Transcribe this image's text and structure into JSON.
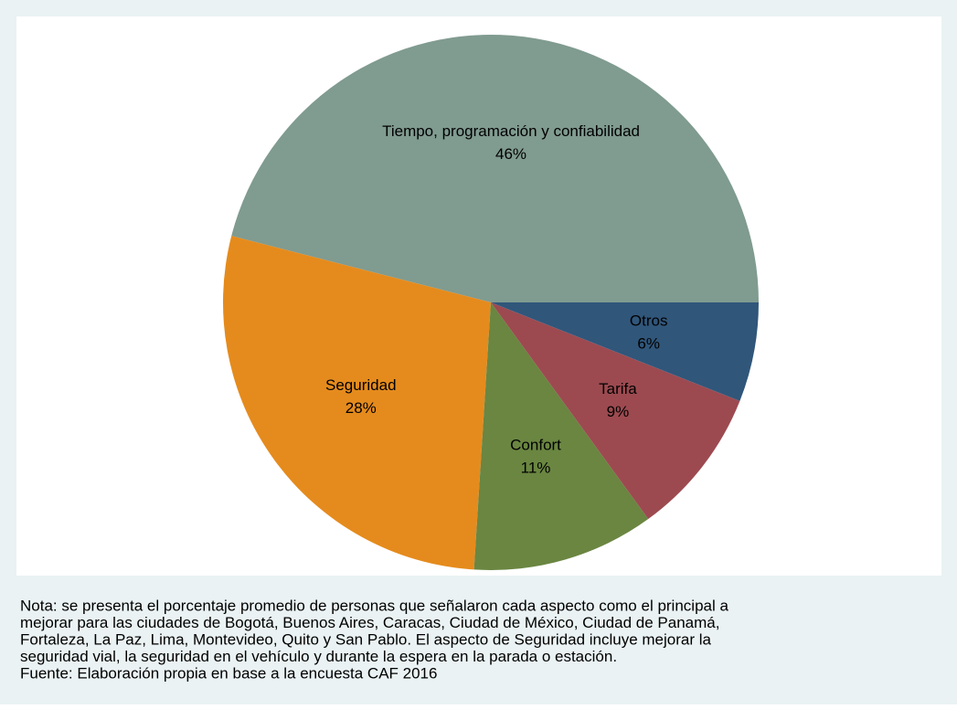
{
  "chart_data": {
    "type": "pie",
    "categories": [
      "Tiempo, programación y confiabilidad",
      "Seguridad",
      "Confort",
      "Tarifa",
      "Otros"
    ],
    "values": [
      46,
      28,
      11,
      9,
      6
    ],
    "value_labels": [
      "46%",
      "28%",
      "11%",
      "9%",
      "6%"
    ],
    "colors": [
      "#809b90",
      "#e58b1d",
      "#6a8641",
      "#9c4a50",
      "#30567a"
    ],
    "note": [
      "Nota: se presenta el porcentaje promedio de personas que señalaron cada aspecto como el principal a",
      "mejorar para las ciudades de Bogotá, Buenos Aires, Caracas, Ciudad de México, Ciudad de Panamá,",
      "Fortaleza, La Paz, Lima, Montevideo, Quito y San Pablo. El aspecto de Seguridad incluye mejorar la",
      "seguridad vial, la seguridad en el vehículo y durante la espera en la parada o estación.",
      "Fuente: Elaboración propia en base a la encuesta CAF 2016"
    ]
  }
}
